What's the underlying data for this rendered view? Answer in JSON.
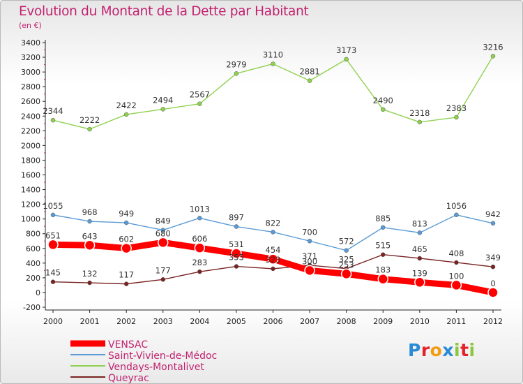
{
  "chart_data": {
    "type": "line",
    "title": "Evolution du Montant de la Dette par Habitant",
    "subtitle": "(en €)",
    "ylim": [
      -200,
      3400
    ],
    "y_ticks": [
      -200,
      0,
      200,
      400,
      600,
      800,
      1000,
      1200,
      1400,
      1600,
      1800,
      2000,
      2200,
      2400,
      2600,
      2800,
      3000,
      3200,
      3400
    ],
    "categories": [
      "2000",
      "2001",
      "2002",
      "2003",
      "2004",
      "2005",
      "2006",
      "2007",
      "2008",
      "2009",
      "2010",
      "2011",
      "2012"
    ],
    "grid": false,
    "legend_position": "bottom-left",
    "series": [
      {
        "name": "VENSAC",
        "color": "#ff0000",
        "values": [
          651,
          643,
          602,
          680,
          606,
          531,
          454,
          300,
          253,
          183,
          139,
          100,
          0
        ]
      },
      {
        "name": "Saint-Vivien-de-Médoc",
        "color": "#5b9bd5",
        "values": [
          1055,
          968,
          949,
          849,
          1013,
          897,
          822,
          700,
          572,
          885,
          813,
          1056,
          942
        ]
      },
      {
        "name": "Vendays-Montalivet",
        "color": "#8fd14f",
        "values": [
          2344,
          2222,
          2422,
          2494,
          2567,
          2979,
          3110,
          2881,
          3173,
          2490,
          2318,
          2383,
          3216
        ]
      },
      {
        "name": "Queyrac",
        "color": "#7b2323",
        "values": [
          145,
          132,
          117,
          177,
          283,
          355,
          323,
          371,
          325,
          515,
          465,
          408,
          349
        ]
      }
    ]
  },
  "logo": {
    "letters": [
      "P",
      "r",
      "o",
      "x",
      "i",
      "t",
      "i"
    ],
    "colors": [
      "#2a8ad6",
      "#e3222a",
      "#f39c12",
      "#2a8ad6",
      "#8cc63f",
      "#e3222a",
      "#8cc63f"
    ]
  }
}
